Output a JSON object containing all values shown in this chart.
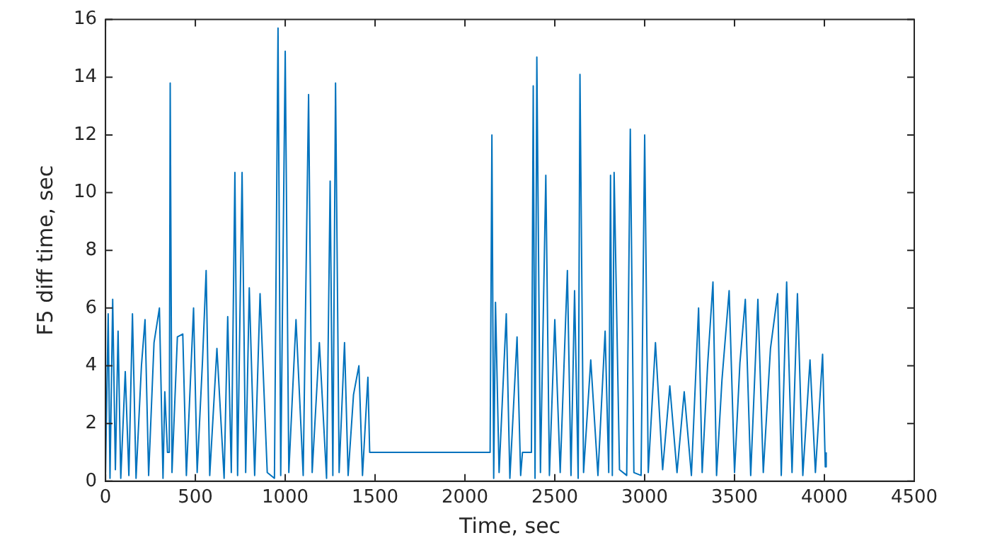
{
  "chart_data": {
    "type": "line",
    "xlabel": "Time, sec",
    "ylabel": "F5 diff time, sec",
    "x": [
      0,
      15,
      25,
      40,
      55,
      70,
      85,
      110,
      130,
      150,
      170,
      200,
      220,
      240,
      270,
      300,
      320,
      330,
      345,
      355,
      360,
      370,
      400,
      430,
      450,
      490,
      510,
      540,
      560,
      580,
      620,
      660,
      680,
      700,
      720,
      735,
      760,
      780,
      800,
      830,
      860,
      900,
      940,
      960,
      975,
      1000,
      1020,
      1060,
      1100,
      1130,
      1150,
      1190,
      1230,
      1250,
      1265,
      1280,
      1300,
      1330,
      1350,
      1380,
      1410,
      1430,
      1460,
      1470,
      2140,
      2150,
      2160,
      2170,
      2190,
      2230,
      2250,
      2290,
      2310,
      2320,
      2370,
      2380,
      2390,
      2400,
      2420,
      2450,
      2470,
      2500,
      2530,
      2570,
      2590,
      2610,
      2630,
      2640,
      2660,
      2700,
      2740,
      2780,
      2800,
      2810,
      2820,
      2830,
      2860,
      2900,
      2920,
      2940,
      2980,
      3000,
      3020,
      3060,
      3100,
      3140,
      3180,
      3220,
      3260,
      3300,
      3320,
      3350,
      3380,
      3400,
      3430,
      3470,
      3500,
      3530,
      3560,
      3590,
      3630,
      3660,
      3700,
      3740,
      3760,
      3790,
      3820,
      3850,
      3880,
      3920,
      3950,
      3990,
      4005,
      4010
    ],
    "values": [
      0.3,
      5.8,
      0.1,
      6.3,
      0.4,
      5.2,
      0.1,
      3.8,
      0.2,
      5.8,
      0.1,
      4.0,
      5.6,
      0.2,
      4.8,
      6.0,
      0.1,
      3.1,
      1.0,
      1.0,
      13.8,
      0.3,
      5.0,
      5.1,
      0.2,
      6.0,
      0.3,
      4.2,
      7.3,
      0.2,
      4.6,
      0.1,
      5.7,
      0.3,
      10.7,
      0.2,
      10.7,
      0.3,
      6.7,
      0.2,
      6.5,
      0.3,
      0.1,
      15.7,
      0.2,
      14.9,
      0.3,
      5.6,
      0.2,
      13.4,
      0.3,
      4.8,
      0.1,
      10.4,
      0.2,
      13.8,
      0.3,
      4.8,
      0.2,
      3.0,
      4.0,
      0.2,
      3.6,
      1.0,
      1.0,
      12.0,
      0.1,
      6.2,
      0.3,
      5.8,
      0.1,
      5.0,
      0.2,
      1.0,
      1.0,
      13.7,
      0.1,
      14.7,
      0.3,
      10.6,
      0.2,
      5.6,
      0.3,
      7.3,
      0.2,
      6.6,
      0.1,
      14.1,
      0.3,
      4.2,
      0.2,
      5.2,
      0.3,
      10.6,
      0.2,
      10.7,
      0.4,
      0.2,
      12.2,
      0.3,
      0.2,
      12.0,
      0.3,
      4.8,
      0.4,
      3.3,
      0.3,
      3.1,
      0.2,
      6.0,
      0.3,
      4.0,
      6.9,
      0.2,
      3.5,
      6.6,
      0.3,
      4.1,
      6.3,
      0.2,
      6.3,
      0.3,
      4.6,
      6.5,
      0.2,
      6.9,
      0.3,
      6.5,
      0.2,
      4.2,
      0.3,
      4.4,
      0.5,
      1.0
    ],
    "color": "#0072bd",
    "xlim": [
      0,
      4500
    ],
    "xticks": [
      0,
      500,
      1000,
      1500,
      2000,
      2500,
      3000,
      3500,
      4000,
      4500
    ],
    "ylim": [
      0,
      16
    ],
    "yticks": [
      0,
      2,
      4,
      6,
      8,
      10,
      12,
      14,
      16
    ],
    "grid": false,
    "legend": false
  }
}
